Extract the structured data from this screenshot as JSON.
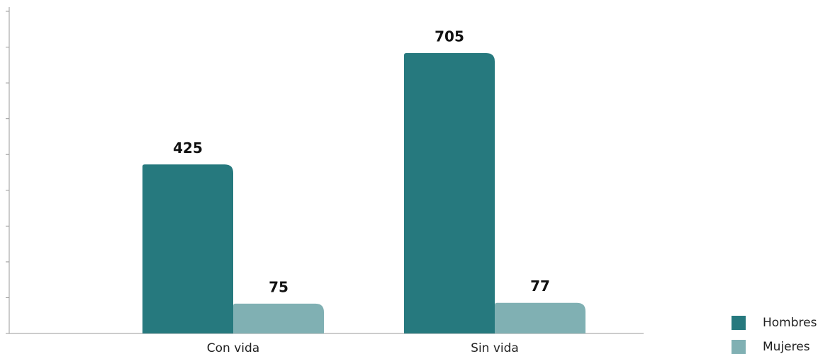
{
  "chart_data": {
    "type": "bar",
    "categories": [
      "Con vida",
      "Sin vida"
    ],
    "series": [
      {
        "name": "Hombres",
        "color": "#26797e",
        "values": [
          425,
          705
        ]
      },
      {
        "name": "Mujeres",
        "color": "#80b0b3",
        "values": [
          75,
          77
        ]
      }
    ],
    "ylim": [
      0,
      810
    ],
    "yticks": [
      0,
      90,
      180,
      270,
      360,
      450,
      540,
      630,
      720,
      810
    ],
    "legend": "bottom-right"
  }
}
